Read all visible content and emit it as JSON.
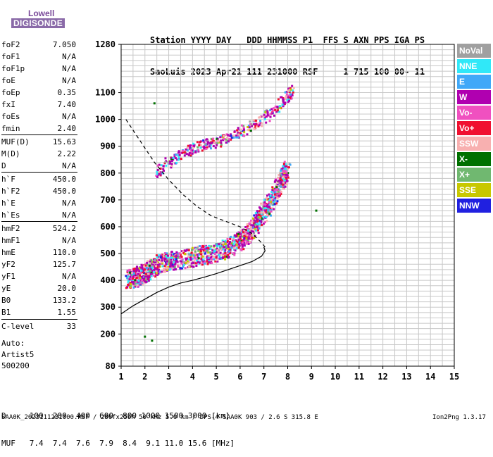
{
  "logo": {
    "line1": "Lowell",
    "line2": "DIGISONDE"
  },
  "header": {
    "row1": "Station YYYY DAY   DDD HHMMSS P1  FFS S AXN PPS IGA PS",
    "row2": "SaoLuis 2023 Apr21 111 231000 RSF     1 715 100 00- 11"
  },
  "params": [
    {
      "name": "foF2",
      "value": "7.050"
    },
    {
      "name": "foF1",
      "value": "N/A"
    },
    {
      "name": "foF1p",
      "value": "N/A"
    },
    {
      "name": "foE",
      "value": "N/A"
    },
    {
      "name": "foEp",
      "value": "0.35"
    },
    {
      "name": "fxI",
      "value": "7.40"
    },
    {
      "name": "foEs",
      "value": "N/A"
    },
    {
      "name": "fmin",
      "value": "2.40"
    },
    {
      "name": "MUF(D)",
      "value": "15.63"
    },
    {
      "name": "M(D)",
      "value": "2.22"
    },
    {
      "name": "D",
      "value": "N/A"
    },
    {
      "name": "h`F",
      "value": "450.0"
    },
    {
      "name": "h`F2",
      "value": "450.0"
    },
    {
      "name": "h`E",
      "value": "N/A"
    },
    {
      "name": "h`Es",
      "value": "N/A"
    },
    {
      "name": "hmF2",
      "value": "524.2"
    },
    {
      "name": "hmF1",
      "value": "N/A"
    },
    {
      "name": "hmE",
      "value": "110.0"
    },
    {
      "name": "yF2",
      "value": "125.7"
    },
    {
      "name": "yF1",
      "value": "N/A"
    },
    {
      "name": "yE",
      "value": "20.0"
    },
    {
      "name": "B0",
      "value": "133.2"
    },
    {
      "name": "B1",
      "value": "1.55"
    },
    {
      "name": "C-level",
      "value": "33"
    }
  ],
  "auto": {
    "line1": "Auto:",
    "line2": "Artist5",
    "line3": "500200"
  },
  "legend": [
    {
      "label": "NoVal",
      "color": "#a0a0a0"
    },
    {
      "label": "NNE",
      "color": "#30e8f8"
    },
    {
      "label": "E",
      "color": "#40a8f8"
    },
    {
      "label": "W",
      "color": "#b000b0"
    },
    {
      "label": "Vo-",
      "color": "#f050c0"
    },
    {
      "label": "Vo+",
      "color": "#f01030"
    },
    {
      "label": "SSW",
      "color": "#f8b0b0"
    },
    {
      "label": "X-",
      "color": "#007000"
    },
    {
      "label": "X+",
      "color": "#70b870"
    },
    {
      "label": "SSE",
      "color": "#c8c800"
    },
    {
      "label": "NNW",
      "color": "#2020e0"
    }
  ],
  "muf_table": {
    "row1": "D     100  200  400  600  800 1000 1500 3000 [km]",
    "row2": "MUF   7.4  7.4  7.6  7.9  8.4  9.1 11.0 15.6 [MHz]"
  },
  "footer": "SAA0K_2023111231000.RSF / 280fx256h 50 kHz 5.0 km / DPS-4 SAA0K 903 / 2.6 S 315.8 E",
  "version": "Ion2Png 1.3.17",
  "chart_data": {
    "type": "scatter",
    "xlim": [
      1,
      15
    ],
    "ylim": [
      80,
      1280
    ],
    "xticks": [
      1,
      2,
      3,
      4,
      5,
      6,
      7,
      8,
      9,
      10,
      11,
      12,
      13,
      14,
      15
    ],
    "yticks": [
      80,
      200,
      300,
      400,
      500,
      600,
      700,
      800,
      900,
      1000,
      1100,
      1280
    ],
    "grid": true,
    "series": [
      {
        "trace": "o-trace F2 lower",
        "points": [
          [
            1.3,
            400
          ],
          [
            1.6,
            410
          ],
          [
            1.9,
            420
          ],
          [
            2.2,
            440
          ],
          [
            2.6,
            460
          ],
          [
            3.0,
            470
          ],
          [
            3.5,
            478
          ],
          [
            4.0,
            485
          ],
          [
            4.5,
            495
          ],
          [
            5.0,
            505
          ],
          [
            5.5,
            520
          ],
          [
            6.0,
            545
          ],
          [
            6.3,
            570
          ],
          [
            6.6,
            600
          ],
          [
            6.9,
            640
          ],
          [
            7.2,
            680
          ],
          [
            7.5,
            730
          ],
          [
            7.8,
            780
          ],
          [
            8.0,
            810
          ]
        ]
      },
      {
        "trace": "o-trace F2 upper",
        "points": [
          [
            2.5,
            800
          ],
          [
            3.0,
            840
          ],
          [
            3.5,
            870
          ],
          [
            4.0,
            890
          ],
          [
            4.5,
            905
          ],
          [
            5.0,
            915
          ],
          [
            5.5,
            930
          ],
          [
            6.0,
            950
          ],
          [
            6.5,
            975
          ],
          [
            7.0,
            1000
          ],
          [
            7.5,
            1040
          ],
          [
            8.0,
            1080
          ],
          [
            8.2,
            1110
          ]
        ]
      },
      {
        "trace": "true-height profile",
        "points": [
          [
            1.0,
            275
          ],
          [
            1.5,
            305
          ],
          [
            2.0,
            330
          ],
          [
            2.5,
            355
          ],
          [
            3.0,
            375
          ],
          [
            3.5,
            390
          ],
          [
            4.0,
            400
          ],
          [
            4.5,
            412
          ],
          [
            5.0,
            425
          ],
          [
            5.5,
            440
          ],
          [
            6.0,
            455
          ],
          [
            6.5,
            470
          ],
          [
            6.9,
            490
          ],
          [
            7.05,
            510
          ],
          [
            7.0,
            524
          ]
        ]
      },
      {
        "trace": "model profile",
        "points": [
          [
            1.2,
            1000
          ],
          [
            1.8,
            920
          ],
          [
            2.4,
            840
          ],
          [
            3.0,
            775
          ],
          [
            3.6,
            720
          ],
          [
            4.2,
            675
          ],
          [
            4.8,
            640
          ],
          [
            5.4,
            620
          ],
          [
            6.0,
            600
          ],
          [
            6.5,
            575
          ],
          [
            6.85,
            545
          ],
          [
            7.05,
            524
          ]
        ]
      }
    ],
    "isolated_points": [
      [
        2.4,
        1060
      ],
      [
        9.2,
        660
      ],
      [
        2.0,
        190
      ],
      [
        2.3,
        175
      ]
    ]
  }
}
